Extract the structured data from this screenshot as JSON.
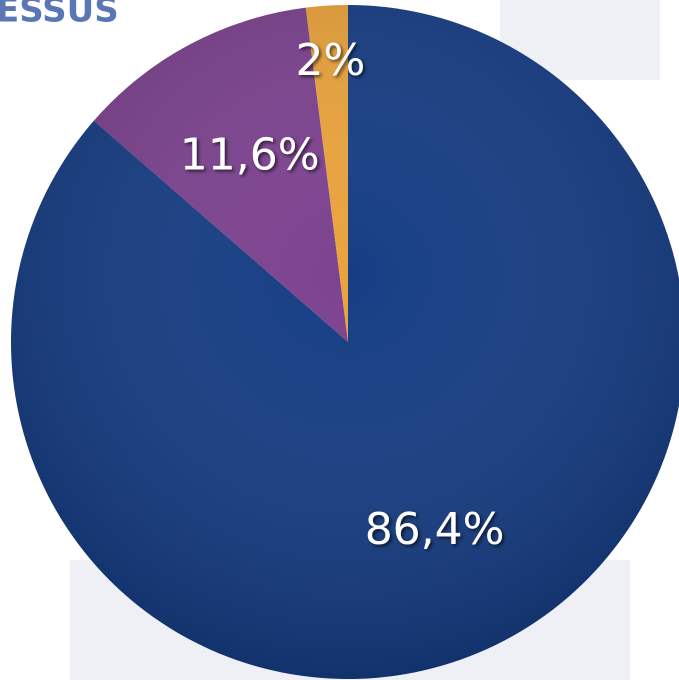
{
  "chart_data": {
    "type": "pie",
    "title": "ESSUS",
    "categories": [
      null,
      null,
      null
    ],
    "values": [
      86.4,
      11.6,
      2
    ],
    "value_labels": [
      "86,4%",
      "11,6%",
      "2%"
    ],
    "colors": [
      "#163d84",
      "#7c428f",
      "#eaa33c"
    ]
  }
}
